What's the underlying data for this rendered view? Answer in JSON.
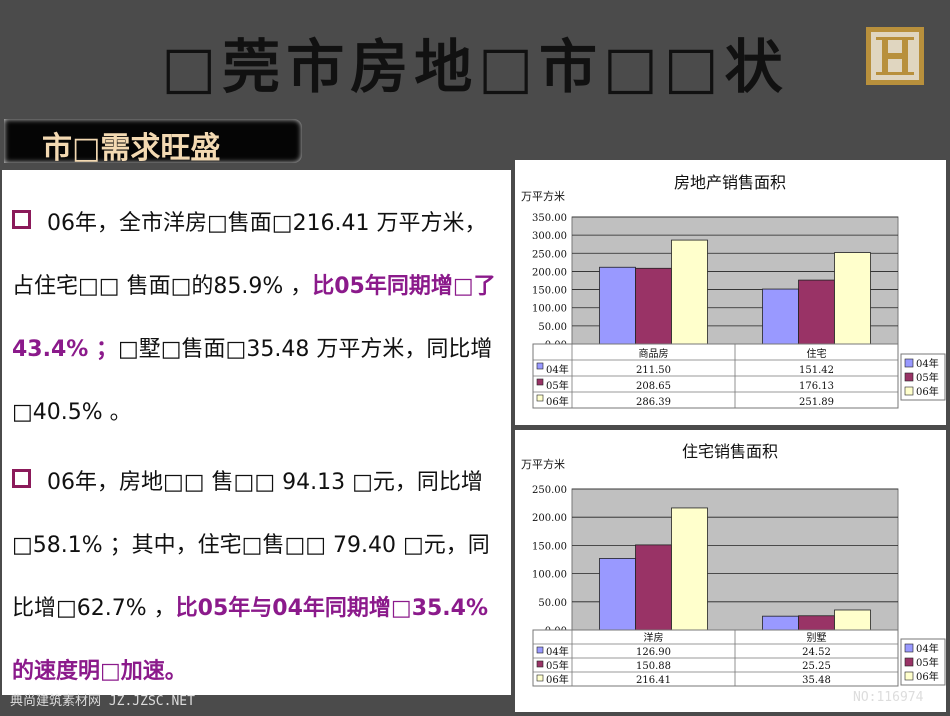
{
  "header": {
    "title": "□莞市房地□市□□状",
    "section_tag": "市□需求旺盛"
  },
  "paragraphs": [
    {
      "text": "06年，全市洋房□售面□216.41 万平方米，占住宅□□ 售面□的85.9% ，",
      "highlight": "比05年同期增□了43.4% ；",
      "text2": "□墅□售面□35.48 万平方米，同比增□40.5% 。"
    },
    {
      "text": "06年，房地□□ 售□□ 94.13 □元，同比增□58.1% ；其中，住宅□售□□ 79.40 □元，同比增□62.7% ，",
      "highlight": "比05年与04年同期增□35.4%  的速度明□加速。",
      "text2": ""
    }
  ],
  "colors": {
    "series_04": "#9999ff",
    "series_05": "#993366",
    "series_06": "#ffffcc",
    "highlight": "#8b1a8b",
    "plot_bg": "#c0c0c0"
  },
  "chart_data": [
    {
      "type": "bar",
      "title": "房地产销售面积",
      "ylabel": "万平方米",
      "categories": [
        "商品房",
        "住宅"
      ],
      "ylim": [
        0,
        350
      ],
      "yticks": [
        "0.00",
        "50.00",
        "100.00",
        "150.00",
        "200.00",
        "250.00",
        "300.00",
        "350.00"
      ],
      "series": [
        {
          "name": "04年",
          "values": [
            211.5,
            151.42
          ],
          "labels": [
            "211.50",
            "151.42"
          ]
        },
        {
          "name": "05年",
          "values": [
            208.65,
            176.13
          ],
          "labels": [
            "208.65",
            "176.13"
          ]
        },
        {
          "name": "06年",
          "values": [
            286.39,
            251.89
          ],
          "labels": [
            "286.39",
            "251.89"
          ]
        }
      ],
      "legend": "right",
      "grid": true
    },
    {
      "type": "bar",
      "title": "住宅销售面积",
      "ylabel": "万平方米",
      "categories": [
        "洋房",
        "别墅"
      ],
      "ylim": [
        0,
        250
      ],
      "yticks": [
        "0.00",
        "50.00",
        "100.00",
        "150.00",
        "200.00",
        "250.00"
      ],
      "series": [
        {
          "name": "04年",
          "values": [
            126.9,
            24.52
          ],
          "labels": [
            "126.90",
            "24.52"
          ]
        },
        {
          "name": "05年",
          "values": [
            150.88,
            25.25
          ],
          "labels": [
            "150.88",
            "25.25"
          ]
        },
        {
          "name": "06年",
          "values": [
            216.41,
            35.48
          ],
          "labels": [
            "216.41",
            "35.48"
          ]
        }
      ],
      "legend": "right",
      "grid": true
    }
  ],
  "footer": {
    "left": "典尚建筑素材网 JZ.JZSC.NET",
    "right": "NO:116974"
  }
}
